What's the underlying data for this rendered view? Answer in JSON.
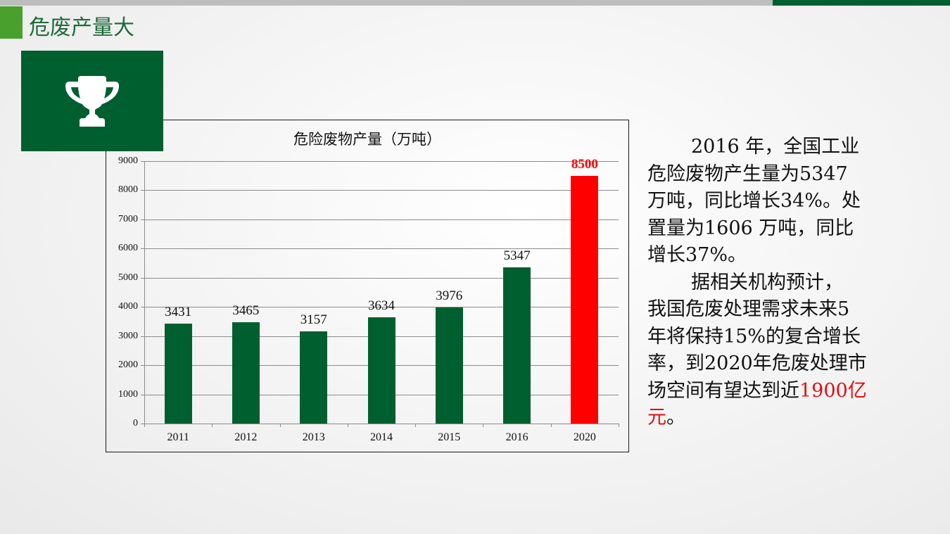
{
  "header": {
    "title": "危废产量大",
    "accent_color": "#4aa02c",
    "brand_color": "#005f2f",
    "icon": "trophy-icon"
  },
  "chart_data": {
    "type": "bar",
    "title": "危险废物产量（万吨）",
    "categories": [
      "2011",
      "2012",
      "2013",
      "2014",
      "2015",
      "2016",
      "2020"
    ],
    "values": [
      3431,
      3465,
      3157,
      3634,
      3976,
      5347,
      8500
    ],
    "value_labels": [
      "3431",
      "3465",
      "3157",
      "3634",
      "3976",
      "5347",
      "8500"
    ],
    "colors": [
      "#005f2f",
      "#005f2f",
      "#005f2f",
      "#005f2f",
      "#005f2f",
      "#005f2f",
      "#ff0000"
    ],
    "highlight_index": 6,
    "xlabel": "",
    "ylabel": "",
    "ylim": [
      0,
      9000
    ],
    "yticks": [
      "9000",
      "8000",
      "7000",
      "6000",
      "5000",
      "4000",
      "3000",
      "2000",
      "1000",
      "0"
    ],
    "grid": true,
    "legend": false
  },
  "text": {
    "para1": {
      "line1": "2016 年，全国工业",
      "line2": "危险废物产生量为5347",
      "line3": "万吨，同比增长34%。处",
      "line4": "置量为1606 万吨，同比",
      "line5": "增长37%。"
    },
    "para2": {
      "line1": "据相关机构预计，",
      "line2": "我国危废处理需求未来5",
      "line3": "年将保持15%的复合增长",
      "line4": "率，到2020年危废处理市",
      "line5_prefix": "场空间有望达到近",
      "line5_highlight": "1900亿",
      "line6_highlight": "元",
      "line6_suffix": "。"
    }
  }
}
